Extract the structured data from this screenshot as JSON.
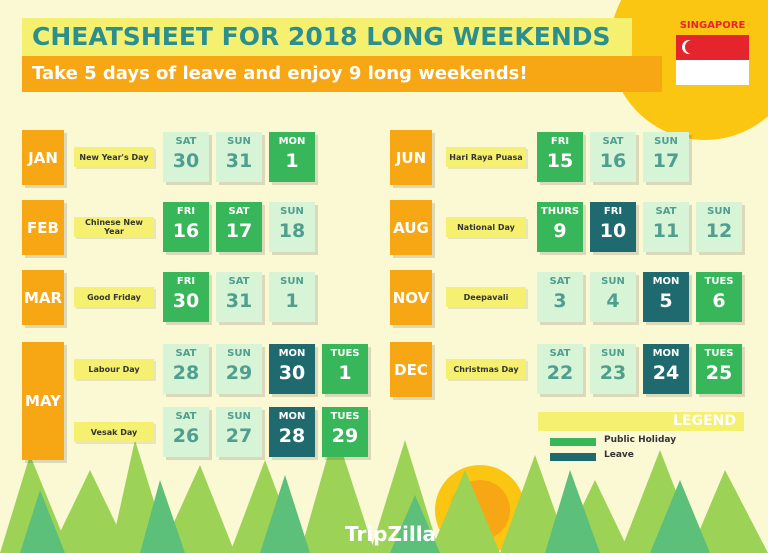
{
  "header": {
    "title": "CHEATSHEET FOR 2018 LONG WEEKENDS",
    "subtitle": "Take 5 days of leave and enjoy 9 long weekends!",
    "country": "SINGAPORE"
  },
  "months": [
    {
      "month": "JAN",
      "holidays": [
        {
          "name": "New Year's Day",
          "days": [
            {
              "day": "SAT",
              "date": 30,
              "color": "#d7f4d6"
            },
            {
              "day": "SUN",
              "date": 31,
              "color": "#d7f4d6"
            },
            {
              "day": "MON",
              "date": 1,
              "color": "#37b65a"
            }
          ]
        }
      ]
    },
    {
      "month": "FEB",
      "holidays": [
        {
          "name": "Chinese New Year",
          "days": [
            {
              "day": "FRI",
              "date": 16,
              "color": "#37b65a"
            },
            {
              "day": "SAT",
              "date": 17,
              "color": "#37b65a"
            },
            {
              "day": "SUN",
              "date": 18,
              "color": "#d7f4d6"
            }
          ]
        }
      ]
    },
    {
      "month": "MAR",
      "holidays": [
        {
          "name": "Good Friday",
          "days": [
            {
              "day": "FRI",
              "date": 30,
              "color": "#37b65a"
            },
            {
              "day": "SAT",
              "date": 31,
              "color": "#d7f4d6"
            },
            {
              "day": "SUN",
              "date": 1,
              "color": "#d7f4d6"
            }
          ]
        }
      ]
    },
    {
      "month": "MAY",
      "holidays": [
        {
          "name": "Labour Day",
          "days": [
            {
              "day": "SAT",
              "date": 28,
              "color": "#d7f4d6"
            },
            {
              "day": "SUN",
              "date": 29,
              "color": "#d7f4d6"
            },
            {
              "day": "MON",
              "date": 30,
              "color": "#1f6a6e"
            },
            {
              "day": "TUES",
              "date": 1,
              "color": "#37b65a"
            }
          ]
        },
        {
          "name": "Vesak Day",
          "days": [
            {
              "day": "SAT",
              "date": 26,
              "color": "#d7f4d6"
            },
            {
              "day": "SUN",
              "date": 27,
              "color": "#d7f4d6"
            },
            {
              "day": "MON",
              "date": 28,
              "color": "#1f6a6e"
            },
            {
              "day": "TUES",
              "date": 29,
              "color": "#37b65a"
            }
          ]
        }
      ]
    },
    {
      "month": "JUN",
      "holidays": [
        {
          "name": "Hari Raya Puasa",
          "days": [
            {
              "day": "FRI",
              "date": 15,
              "color": "#37b65a"
            },
            {
              "day": "SAT",
              "date": 16,
              "color": "#d7f4d6"
            },
            {
              "day": "SUN",
              "date": 17,
              "color": "#d7f4d6"
            }
          ]
        }
      ]
    },
    {
      "month": "AUG",
      "holidays": [
        {
          "name": "National Day",
          "days": [
            {
              "day": "THURS",
              "date": 9,
              "color": "#37b65a"
            },
            {
              "day": "FRI",
              "date": 10,
              "color": "#1f6a6e"
            },
            {
              "day": "SAT",
              "date": 11,
              "color": "#d7f4d6"
            },
            {
              "day": "SUN",
              "date": 12,
              "color": "#d7f4d6"
            }
          ]
        }
      ]
    },
    {
      "month": "NOV",
      "holidays": [
        {
          "name": "Deepavali",
          "days": [
            {
              "day": "SAT",
              "date": 3,
              "color": "#d7f4d6"
            },
            {
              "day": "SUN",
              "date": 4,
              "color": "#d7f4d6"
            },
            {
              "day": "MON",
              "date": 5,
              "color": "#1f6a6e"
            },
            {
              "day": "TUES",
              "date": 6,
              "color": "#37b65a"
            }
          ]
        }
      ]
    },
    {
      "month": "DEC",
      "holidays": [
        {
          "name": "Christmas Day",
          "days": [
            {
              "day": "SAT",
              "date": 22,
              "color": "#d7f4d6"
            },
            {
              "day": "SUN",
              "date": 23,
              "color": "#d7f4d6"
            },
            {
              "day": "MON",
              "date": 24,
              "color": "#1f6a6e"
            },
            {
              "day": "TUES",
              "date": 25,
              "color": "#37b65a"
            }
          ]
        }
      ]
    }
  ],
  "legend": {
    "title": "LEGEND",
    "items": [
      {
        "label": "Public Holiday",
        "color": "#37b65a"
      },
      {
        "label": "Leave",
        "color": "#1f6a6e"
      }
    ]
  },
  "footer": {
    "brand": "TripZilla"
  }
}
